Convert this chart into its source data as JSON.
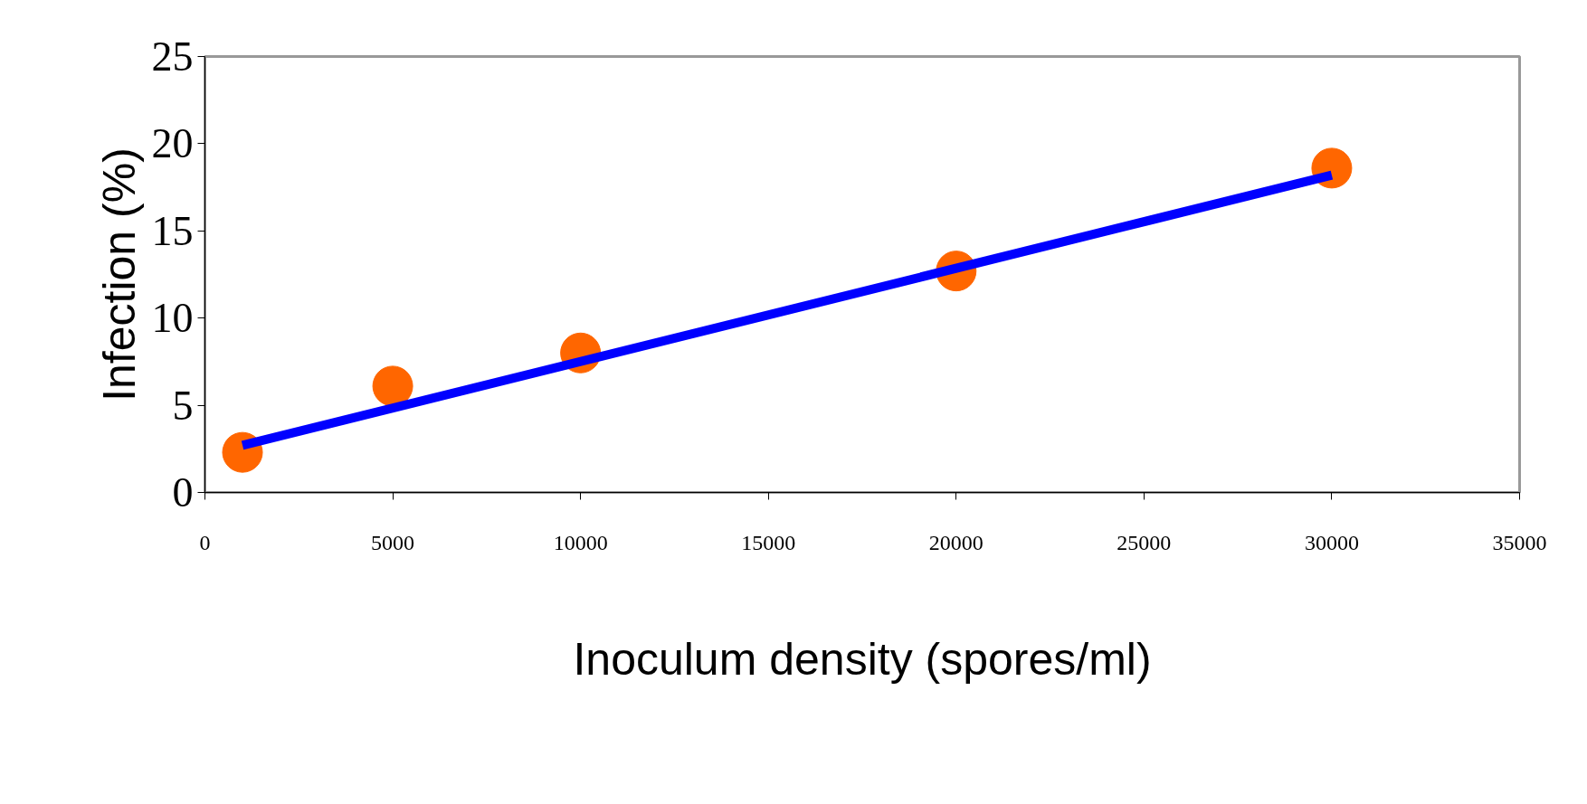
{
  "chart_data": {
    "type": "scatter",
    "xlabel": "Inoculum density (spores/ml)",
    "ylabel": "Infection (%)",
    "xlim": [
      0,
      35000
    ],
    "xticks": [
      0,
      5000,
      10000,
      15000,
      20000,
      25000,
      30000,
      35000
    ],
    "ylim": [
      0,
      25
    ],
    "yticks": [
      0,
      5,
      10,
      15,
      20,
      25
    ],
    "grid": false,
    "series": [
      {
        "type": "line",
        "color": "#0000ff",
        "x": [
          1000,
          30000
        ],
        "values": [
          2.7,
          18.2
        ],
        "marker": "none"
      },
      {
        "type": "scatter",
        "color": "#ff6600",
        "x": [
          1000,
          5000,
          10000,
          20000,
          30000
        ],
        "marker": "circle",
        "values": [
          2.3,
          6.1,
          8.0,
          12.7,
          18.6
        ]
      }
    ]
  }
}
